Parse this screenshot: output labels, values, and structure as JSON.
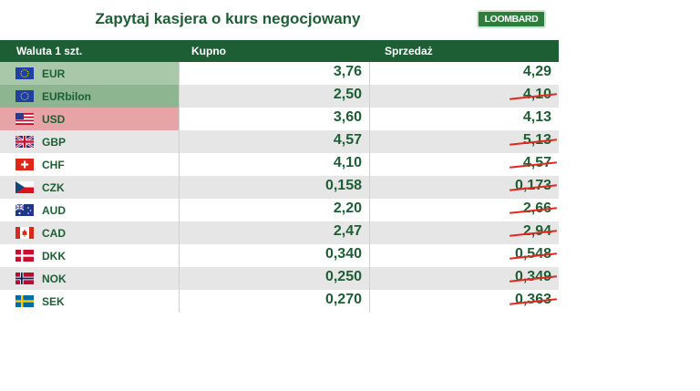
{
  "title": "Zapytaj kasjera o kurs negocjowany",
  "logo": "LOOMBARD",
  "headers": {
    "currency": "Waluta 1 szt.",
    "buy": "Kupno",
    "sell": "Sprzedaż"
  },
  "rows": [
    {
      "code": "EUR",
      "flag": "eu",
      "buy": "3,76",
      "sell": "4,29",
      "sell_crossed": false,
      "highlight": "green"
    },
    {
      "code": "EURbilon",
      "flag": "eu",
      "buy": "2,50",
      "sell": "4,10",
      "sell_crossed": true,
      "highlight": "green2"
    },
    {
      "code": "USD",
      "flag": "us",
      "buy": "3,60",
      "sell": "4,13",
      "sell_crossed": false,
      "highlight": "red"
    },
    {
      "code": "GBP",
      "flag": "gb",
      "buy": "4,57",
      "sell": "5,13",
      "sell_crossed": true,
      "highlight": ""
    },
    {
      "code": "CHF",
      "flag": "ch",
      "buy": "4,10",
      "sell": "4,57",
      "sell_crossed": true,
      "highlight": ""
    },
    {
      "code": "CZK",
      "flag": "cz",
      "buy": "0,158",
      "sell": "0,173",
      "sell_crossed": true,
      "highlight": ""
    },
    {
      "code": "AUD",
      "flag": "au",
      "buy": "2,20",
      "sell": "2,66",
      "sell_crossed": true,
      "highlight": ""
    },
    {
      "code": "CAD",
      "flag": "ca",
      "buy": "2,47",
      "sell": "2,94",
      "sell_crossed": true,
      "highlight": ""
    },
    {
      "code": "DKK",
      "flag": "dk",
      "buy": "0,340",
      "sell": "0,548",
      "sell_crossed": true,
      "highlight": ""
    },
    {
      "code": "NOK",
      "flag": "no",
      "buy": "0,250",
      "sell": "0,349",
      "sell_crossed": true,
      "highlight": ""
    },
    {
      "code": "SEK",
      "flag": "se",
      "buy": "0,270",
      "sell": "0,363",
      "sell_crossed": true,
      "highlight": ""
    }
  ],
  "colors": {
    "brand_green": "#1e5e34",
    "strike_red": "#e0281f"
  }
}
